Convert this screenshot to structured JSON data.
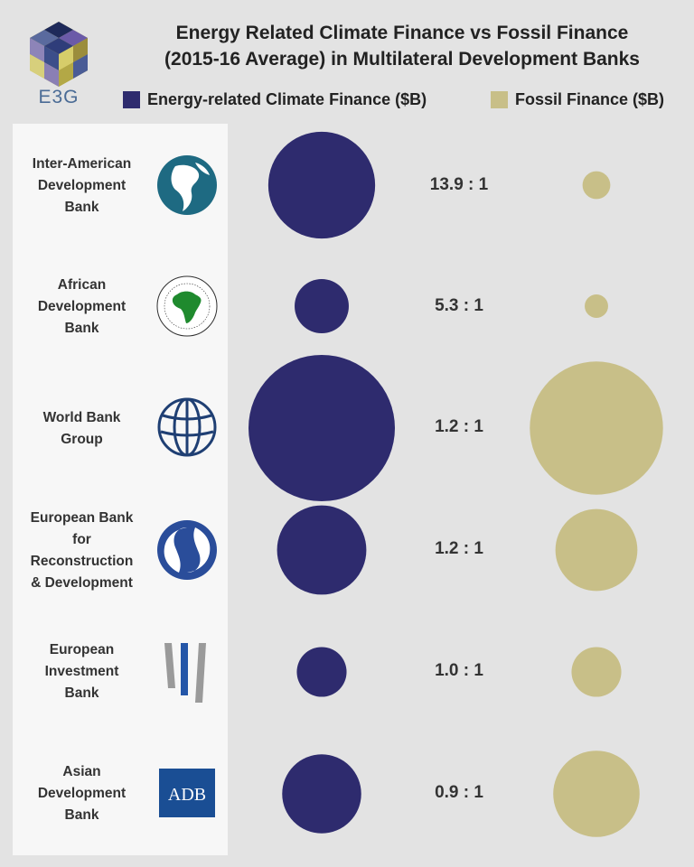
{
  "logo": {
    "name": "E3G"
  },
  "chart_data": {
    "type": "bubble",
    "title_lines": [
      "Energy Related Climate Finance vs Fossil Finance",
      "(2015-16 Average) in Multilateral Development Banks"
    ],
    "series": [
      {
        "name": "Energy-related Climate Finance ($B)",
        "color": "#2e2b6e"
      },
      {
        "name": "Fossil Finance ($B)",
        "color": "#c8bf88"
      }
    ],
    "rows": [
      {
        "name_lines": [
          "Inter-American",
          "Development",
          "Bank"
        ],
        "ratio": "13.9 : 1",
        "climate_radius_rel": 0.73,
        "fossil_radius_rel": 0.19,
        "logo": "iadb-logo"
      },
      {
        "name_lines": [
          "African",
          "Development",
          "Bank"
        ],
        "ratio": "5.3 : 1",
        "climate_radius_rel": 0.37,
        "fossil_radius_rel": 0.16,
        "logo": "afdb-logo"
      },
      {
        "name_lines": [
          "World Bank",
          "Group"
        ],
        "ratio": "1.2 : 1",
        "climate_radius_rel": 1.0,
        "fossil_radius_rel": 0.91,
        "logo": "world-bank-logo"
      },
      {
        "name_lines": [
          "European Bank",
          "for",
          "Reconstruction",
          "& Development"
        ],
        "ratio": "1.2 : 1",
        "climate_radius_rel": 0.61,
        "fossil_radius_rel": 0.56,
        "logo": "ebrd-logo"
      },
      {
        "name_lines": [
          "European",
          "Investment",
          "Bank"
        ],
        "ratio": "1.0 : 1",
        "climate_radius_rel": 0.34,
        "fossil_radius_rel": 0.34,
        "logo": "eib-logo"
      },
      {
        "name_lines": [
          "Asian",
          "Development",
          "Bank"
        ],
        "ratio": "0.9 : 1",
        "climate_radius_rel": 0.54,
        "fossil_radius_rel": 0.59,
        "logo": "adb-logo",
        "logo_text": "ADB"
      }
    ]
  }
}
